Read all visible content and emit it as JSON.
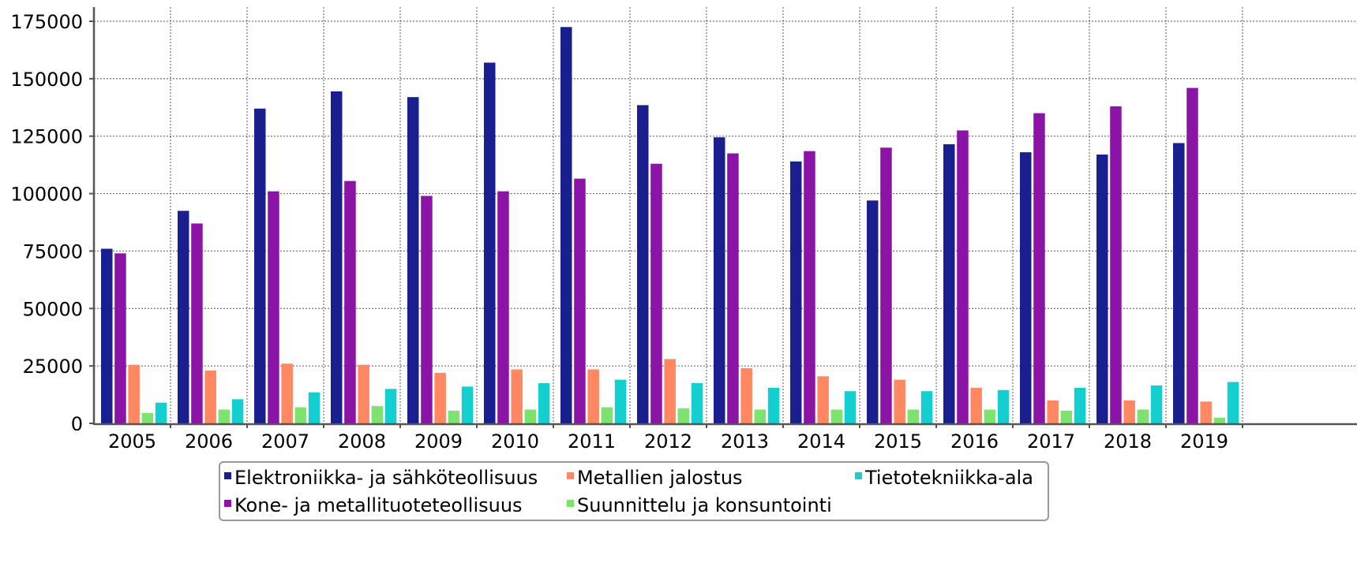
{
  "chart_data": {
    "type": "bar",
    "title": "",
    "xlabel": "",
    "ylabel": "",
    "ylim": [
      0,
      180000
    ],
    "yticks": [
      0,
      25000,
      50000,
      75000,
      100000,
      125000,
      150000,
      175000
    ],
    "grid": true,
    "legend_position": "bottom",
    "categories": [
      "2005",
      "2006",
      "2007",
      "2008",
      "2009",
      "2010",
      "2011",
      "2012",
      "2013",
      "2014",
      "2015",
      "2016",
      "2017",
      "2018",
      "2019"
    ],
    "series": [
      {
        "name": "Elektroniikka- ja sähköteollisuus",
        "color": "#1a1f8f",
        "values": [
          76000,
          92500,
          137000,
          144500,
          142000,
          157000,
          172500,
          138500,
          124500,
          114000,
          97000,
          121500,
          118000,
          117000,
          122000
        ]
      },
      {
        "name": "Kone- ja metallituoteteollisuus",
        "color": "#8b14a6",
        "values": [
          74000,
          87000,
          101000,
          105500,
          99000,
          101000,
          106500,
          113000,
          117500,
          118500,
          120000,
          127500,
          135000,
          138000,
          146000
        ]
      },
      {
        "name": "Metallien jalostus",
        "color": "#ff8863",
        "values": [
          25500,
          23000,
          26000,
          25500,
          22000,
          23500,
          23500,
          28000,
          24000,
          20500,
          19000,
          15500,
          10000,
          10000,
          9500
        ]
      },
      {
        "name": "Suunnittelu ja konsuntointi",
        "color": "#7ee26e",
        "values": [
          4500,
          6000,
          7000,
          7500,
          5500,
          6000,
          7000,
          6500,
          6000,
          6000,
          6000,
          6000,
          5500,
          6000,
          2500
        ]
      },
      {
        "name": "Tietotekniikka-ala",
        "color": "#13cfcf",
        "values": [
          9000,
          10500,
          13500,
          15000,
          16000,
          17500,
          19000,
          17500,
          15500,
          14000,
          14000,
          14500,
          15500,
          16500,
          18000
        ]
      }
    ],
    "legend_order": [
      [
        "Elektroniikka- ja sähköteollisuus",
        "Metallien jalostus",
        "Tietotekniikka-ala"
      ],
      [
        "Kone- ja metallituoteteollisuus",
        "Suunnittelu ja konsuntointi"
      ]
    ]
  }
}
